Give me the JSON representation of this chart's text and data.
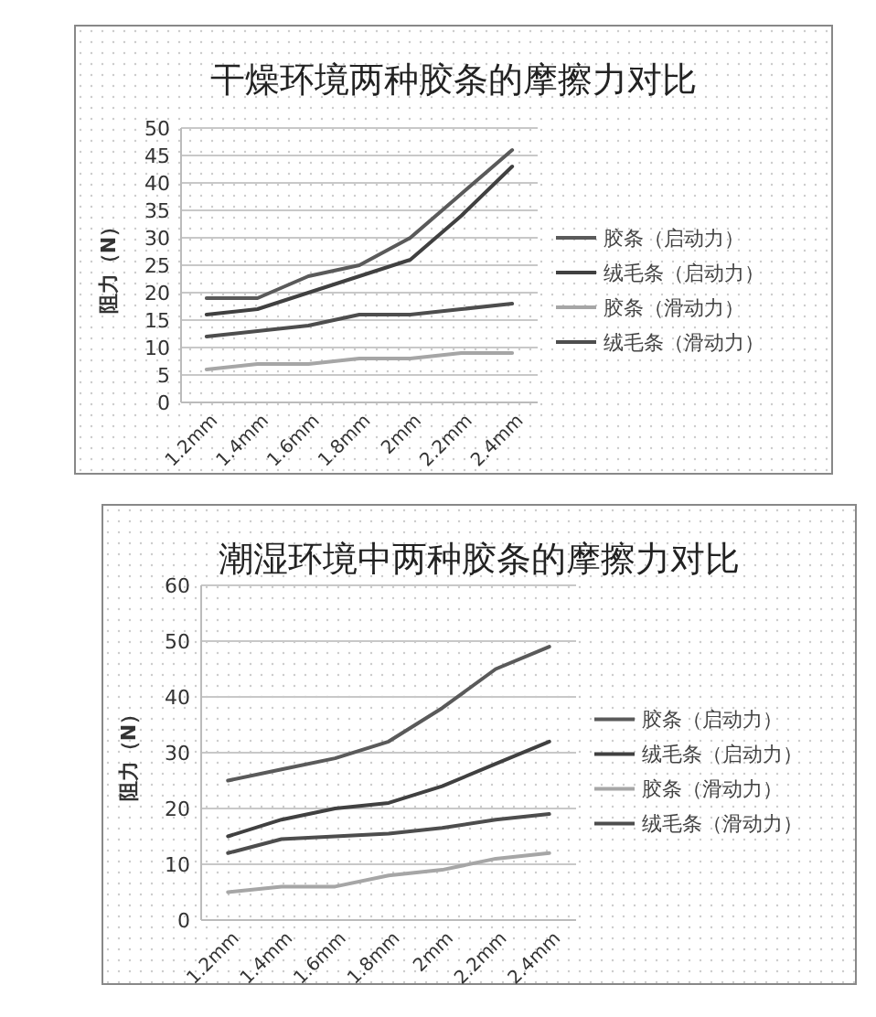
{
  "chart_data": [
    {
      "type": "line",
      "title": "干燥环境两种胶条的摩擦力对比",
      "ylabel": "阻力（N）",
      "categories": [
        "1.2mm",
        "1.4mm",
        "1.6mm",
        "1.8mm",
        "2mm",
        "2.2mm",
        "2.4mm"
      ],
      "ylim": [
        0,
        50
      ],
      "yticks": [
        0,
        5,
        10,
        15,
        20,
        25,
        30,
        35,
        40,
        45,
        50
      ],
      "grid": "y",
      "legend": "right",
      "marker": "none",
      "series": [
        {
          "name": "胶条（启动力）",
          "color": "#5a5a5a",
          "values": [
            19,
            19,
            23,
            25,
            30,
            38,
            46
          ]
        },
        {
          "name": "绒毛条（启动力）",
          "color": "#404040",
          "values": [
            16,
            17,
            20,
            23,
            26,
            34,
            43
          ]
        },
        {
          "name": "胶条（滑动力）",
          "color": "#a6a6a6",
          "values": [
            6,
            7,
            7,
            8,
            8,
            9,
            9
          ]
        },
        {
          "name": "绒毛条（滑动力）",
          "color": "#4d4d4d",
          "values": [
            12,
            13,
            14,
            16,
            16,
            17,
            18
          ]
        }
      ]
    },
    {
      "type": "line",
      "title": "潮湿环境中两种胶条的摩擦力对比",
      "ylabel": "阻力（N）",
      "categories": [
        "1.2mm",
        "1.4mm",
        "1.6mm",
        "1.8mm",
        "2mm",
        "2.2mm",
        "2.4mm"
      ],
      "ylim": [
        0,
        60
      ],
      "yticks": [
        0,
        10,
        20,
        30,
        40,
        50,
        60
      ],
      "grid": "y",
      "legend": "right",
      "marker": "none",
      "series": [
        {
          "name": "胶条（启动力）",
          "color": "#5a5a5a",
          "values": [
            25,
            27,
            29,
            32,
            38,
            45,
            49
          ]
        },
        {
          "name": "绒毛条（启动力）",
          "color": "#404040",
          "values": [
            15,
            18,
            20,
            21,
            24,
            28,
            32
          ]
        },
        {
          "name": "胶条（滑动力）",
          "color": "#a6a6a6",
          "values": [
            5,
            6,
            6,
            8,
            9,
            11,
            12
          ]
        },
        {
          "name": "绒毛条（滑动力）",
          "color": "#4d4d4d",
          "values": [
            12,
            14.5,
            15,
            15.5,
            16.5,
            18,
            19
          ]
        }
      ]
    }
  ]
}
